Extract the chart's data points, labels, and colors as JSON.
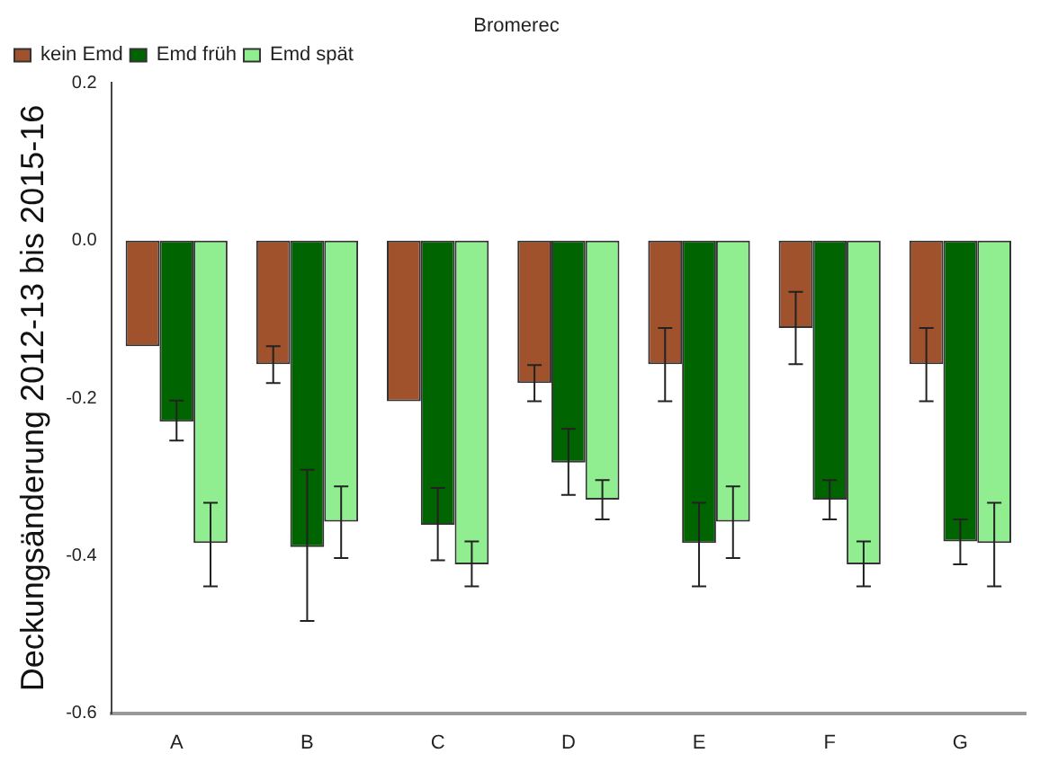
{
  "chart_data": {
    "type": "bar",
    "title": "Bromerec",
    "ylabel": "Deckungsänderung 2012-13 bis 2015-16",
    "categories": [
      "A",
      "B",
      "C",
      "D",
      "E",
      "F",
      "G"
    ],
    "series": [
      {
        "name": "kein Emd",
        "color": "#a0522d",
        "values": [
          -0.134,
          -0.157,
          -0.204,
          -0.181,
          -0.157,
          -0.111,
          -0.157
        ],
        "errors": [
          null,
          [
            -0.181,
            -0.134
          ],
          null,
          [
            -0.204,
            -0.158
          ],
          [
            -0.204,
            -0.111
          ],
          [
            -0.157,
            -0.065
          ],
          [
            -0.204,
            -0.111
          ]
        ]
      },
      {
        "name": "Emd früh",
        "color": "#006400",
        "values": [
          -0.23,
          -0.389,
          -0.361,
          -0.282,
          -0.384,
          -0.329,
          -0.382
        ],
        "errors": [
          [
            -0.254,
            -0.203
          ],
          [
            -0.483,
            -0.291
          ],
          [
            -0.406,
            -0.314
          ],
          [
            -0.323,
            -0.239
          ],
          [
            -0.439,
            -0.333
          ],
          [
            -0.354,
            -0.304
          ],
          [
            -0.411,
            -0.354
          ]
        ]
      },
      {
        "name": "Emd spät",
        "color": "#90ee90",
        "values": [
          -0.384,
          -0.357,
          -0.411,
          -0.329,
          -0.357,
          -0.411,
          -0.384
        ],
        "errors": [
          [
            -0.439,
            -0.333
          ],
          [
            -0.403,
            -0.312
          ],
          [
            -0.439,
            -0.382
          ],
          [
            -0.354,
            -0.304
          ],
          [
            -0.403,
            -0.312
          ],
          [
            -0.439,
            -0.382
          ],
          [
            -0.439,
            -0.333
          ]
        ]
      }
    ],
    "ylim": [
      -0.6,
      0.2
    ],
    "yticks": [
      {
        "value": -0.6,
        "label": "-0.6"
      },
      {
        "value": -0.4,
        "label": "-0.4"
      },
      {
        "value": -0.2,
        "label": "-0.2"
      },
      {
        "value": 0,
        "label": "0.0"
      },
      {
        "value": 0.2,
        "label": "0.2"
      }
    ],
    "grid": false,
    "legend": "top left"
  }
}
